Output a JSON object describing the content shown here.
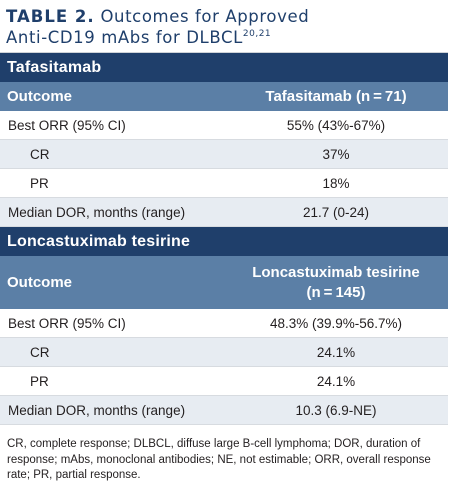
{
  "title": {
    "tag": "TABLE 2.",
    "line1": "Outcomes for Approved",
    "line2": "Anti-CD19 mAbs for DLBCL",
    "refs": "20,21"
  },
  "sections": [
    {
      "name": "Tafasitamab",
      "header": {
        "col1": "Outcome",
        "col2_line1": "Tafasitamab (n = 71)",
        "col2_line2": ""
      },
      "rows": [
        {
          "label": "Best ORR (95% CI)",
          "value": "55% (43%-67%)"
        },
        {
          "label": "CR",
          "value": "37%"
        },
        {
          "label": "PR",
          "value": "18%"
        },
        {
          "label": "Median DOR, months (range)",
          "value": "21.7 (0-24)"
        }
      ]
    },
    {
      "name": "Loncastuximab tesirine",
      "header": {
        "col1": "Outcome",
        "col2_line1": "Loncastuximab tesirine",
        "col2_line2": "(n = 145)"
      },
      "rows": [
        {
          "label": "Best ORR (95% CI)",
          "value": "48.3% (39.9%-56.7%)"
        },
        {
          "label": "CR",
          "value": "24.1%"
        },
        {
          "label": "PR",
          "value": "24.1%"
        },
        {
          "label": "Median DOR, months (range)",
          "value": "10.3 (6.9-NE)"
        }
      ]
    }
  ],
  "footnote": "CR, complete response; DLBCL, diffuse large B-cell lymphoma; DOR, duration of response; mAbs, monoclonal antibodies; NE, not estimable; ORR, overall response rate; PR, partial response.",
  "colors": {
    "dark": "#1f3f6b",
    "mid": "#5b7fa6",
    "alt_row": "#e7ecf2"
  }
}
